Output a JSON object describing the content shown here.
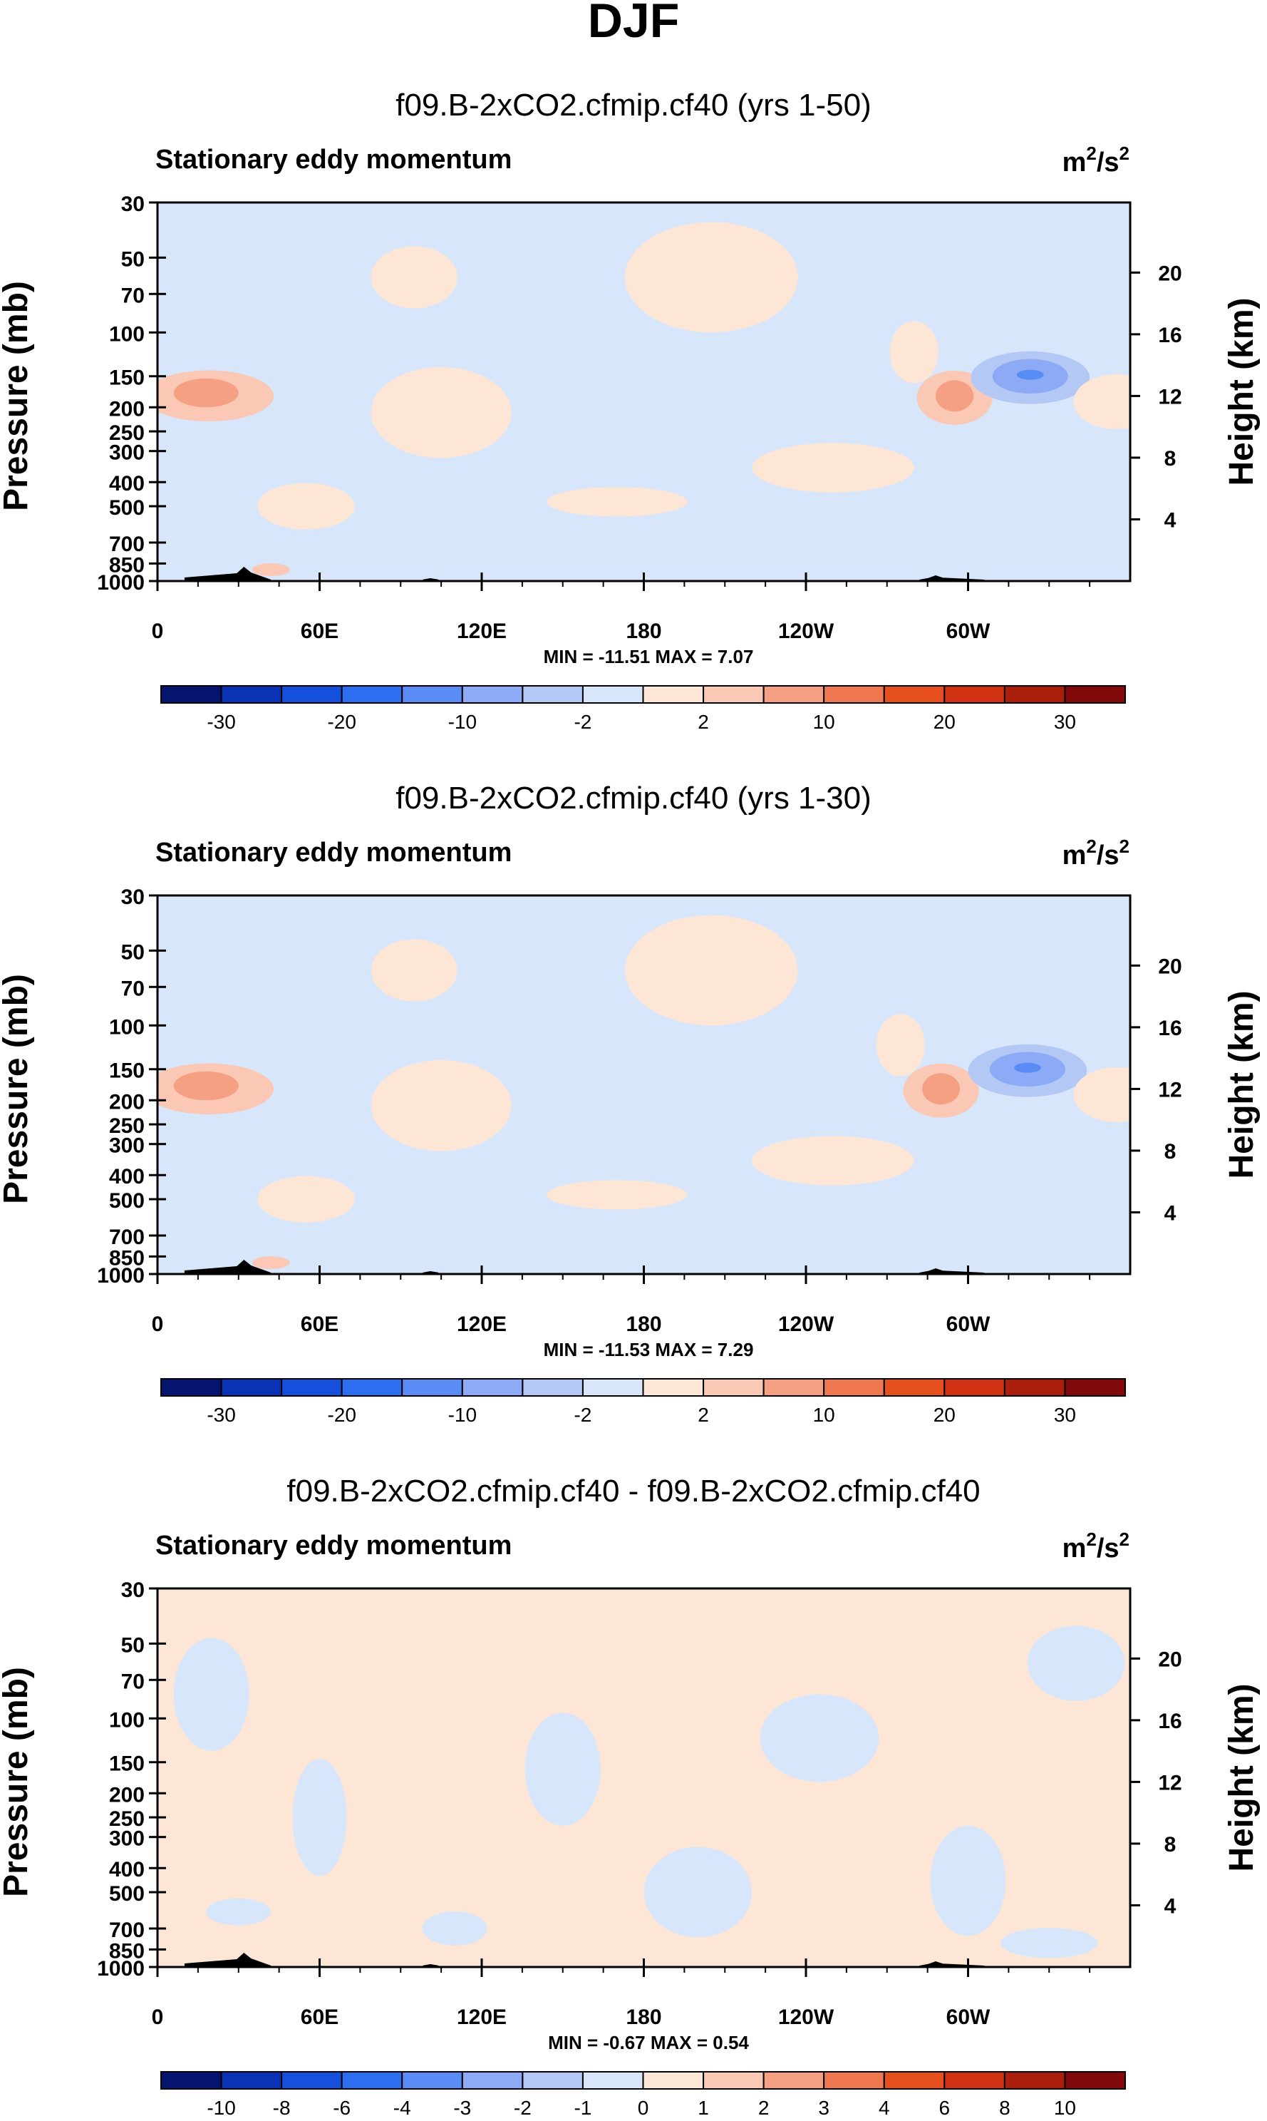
{
  "figure_title": "DJF",
  "chart_data": [
    {
      "type": "heatmap",
      "title": "f09.B-2xCO2.cfmip.cf40 (yrs 1-50)",
      "left_label": "Stationary eddy momentum",
      "units_base": "m",
      "units_sup1": "2",
      "units_mid": "/s",
      "units_sup2": "2",
      "ylabel": "Pressure (mb)",
      "ylabel_right": "Height (km)",
      "x_ticks": [
        "0",
        "60E",
        "120E",
        "180",
        "120W",
        "60W"
      ],
      "x_tick_lon": [
        0,
        60,
        120,
        180,
        240,
        300
      ],
      "x_range": [
        0,
        360
      ],
      "y_ticks": [
        "30",
        "50",
        "70",
        "100",
        "150",
        "200",
        "250",
        "300",
        "400",
        "500",
        "700",
        "850",
        "1000"
      ],
      "y_tick_p": [
        30,
        50,
        70,
        100,
        150,
        200,
        250,
        300,
        400,
        500,
        700,
        850,
        1000
      ],
      "y_range": [
        30,
        1000
      ],
      "height_ticks": [
        "20",
        "16",
        "12",
        "8",
        "4"
      ],
      "height_km": [
        20,
        16,
        12,
        8,
        4
      ],
      "stats": "MIN = -11.51  MAX =  7.07",
      "colorbar_levels": [
        "-30",
        "-20",
        "-10",
        "-2",
        "2",
        "10",
        "20",
        "30"
      ],
      "colorbar_label_slots": [
        1,
        3,
        5,
        7,
        9,
        11,
        13,
        15
      ],
      "colors": [
        "#05146e",
        "#0a32b4",
        "#1450dc",
        "#2d6ef0",
        "#5a8cf5",
        "#8caaf5",
        "#b4c8f5",
        "#d7e6fa",
        "#fde6d6",
        "#fac8b4",
        "#f5a082",
        "#f07850",
        "#e6501e",
        "#d23214",
        "#aa1e0a",
        "#820a0a"
      ],
      "background_level": 7,
      "features": [
        {
          "kind": "blob",
          "lon": 19,
          "p": 180,
          "rx": 24,
          "ry": 48,
          "level": 9
        },
        {
          "kind": "blob",
          "lon": 18,
          "p": 175,
          "rx": 12,
          "ry": 25,
          "level": 10
        },
        {
          "kind": "blob",
          "lon": 295,
          "p": 183,
          "rx": 14,
          "ry": 52,
          "level": 9
        },
        {
          "kind": "blob",
          "lon": 295,
          "p": 180,
          "rx": 7,
          "ry": 28,
          "level": 10
        },
        {
          "kind": "blob",
          "lon": 323,
          "p": 152,
          "rx": 22,
          "ry": 42,
          "level": 6
        },
        {
          "kind": "blob",
          "lon": 323,
          "p": 150,
          "rx": 14,
          "ry": 26,
          "level": 5
        },
        {
          "kind": "blob",
          "lon": 323,
          "p": 148,
          "rx": 5,
          "ry": 7,
          "level": 4
        },
        {
          "kind": "blob",
          "lon": 105,
          "p": 210,
          "rx": 26,
          "ry": 110,
          "level": 8
        },
        {
          "kind": "blob",
          "lon": 250,
          "p": 350,
          "rx": 30,
          "ry": 90,
          "level": 8
        },
        {
          "kind": "blob",
          "lon": 170,
          "p": 480,
          "rx": 26,
          "ry": 70,
          "level": 8
        },
        {
          "kind": "blob",
          "lon": 55,
          "p": 500,
          "rx": 18,
          "ry": 120,
          "level": 8
        },
        {
          "kind": "blob",
          "lon": 205,
          "p": 60,
          "rx": 32,
          "ry": 40,
          "level": 8
        },
        {
          "kind": "blob",
          "lon": 355,
          "p": 190,
          "rx": 16,
          "ry": 55,
          "level": 8
        },
        {
          "kind": "blob",
          "lon": 42,
          "p": 900,
          "rx": 7,
          "ry": 55,
          "level": 9
        },
        {
          "kind": "blob",
          "lon": 95,
          "p": 60,
          "rx": 16,
          "ry": 20,
          "level": 8
        },
        {
          "kind": "blob",
          "lon": 280,
          "p": 120,
          "rx": 9,
          "ry": 40,
          "level": 8
        }
      ],
      "topography": [
        {
          "lon0": 10,
          "lon1": 42,
          "peak_lon": 32,
          "peak_h": 20
        },
        {
          "lon0": 282,
          "lon1": 306,
          "peak_lon": 288,
          "peak_h": 8
        },
        {
          "lon0": 98,
          "lon1": 104,
          "peak_lon": 101,
          "peak_h": 4
        }
      ]
    },
    {
      "type": "heatmap",
      "title": "f09.B-2xCO2.cfmip.cf40 (yrs 1-30)",
      "left_label": "Stationary eddy momentum",
      "units_base": "m",
      "units_sup1": "2",
      "units_mid": "/s",
      "units_sup2": "2",
      "ylabel": "Pressure (mb)",
      "ylabel_right": "Height (km)",
      "x_ticks": [
        "0",
        "60E",
        "120E",
        "180",
        "120W",
        "60W"
      ],
      "x_tick_lon": [
        0,
        60,
        120,
        180,
        240,
        300
      ],
      "x_range": [
        0,
        360
      ],
      "y_ticks": [
        "30",
        "50",
        "70",
        "100",
        "150",
        "200",
        "250",
        "300",
        "400",
        "500",
        "700",
        "850",
        "1000"
      ],
      "y_tick_p": [
        30,
        50,
        70,
        100,
        150,
        200,
        250,
        300,
        400,
        500,
        700,
        850,
        1000
      ],
      "y_range": [
        30,
        1000
      ],
      "height_ticks": [
        "20",
        "16",
        "12",
        "8",
        "4"
      ],
      "height_km": [
        20,
        16,
        12,
        8,
        4
      ],
      "stats": "MIN = -11.53  MAX =  7.29",
      "colorbar_levels": [
        "-30",
        "-20",
        "-10",
        "-2",
        "2",
        "10",
        "20",
        "30"
      ],
      "colorbar_label_slots": [
        1,
        3,
        5,
        7,
        9,
        11,
        13,
        15
      ],
      "colors": [
        "#05146e",
        "#0a32b4",
        "#1450dc",
        "#2d6ef0",
        "#5a8cf5",
        "#8caaf5",
        "#b4c8f5",
        "#d7e6fa",
        "#fde6d6",
        "#fac8b4",
        "#f5a082",
        "#f07850",
        "#e6501e",
        "#d23214",
        "#aa1e0a",
        "#820a0a"
      ],
      "background_level": 7,
      "features": [
        {
          "kind": "blob",
          "lon": 19,
          "p": 180,
          "rx": 24,
          "ry": 48,
          "level": 9
        },
        {
          "kind": "blob",
          "lon": 18,
          "p": 175,
          "rx": 12,
          "ry": 25,
          "level": 10
        },
        {
          "kind": "blob",
          "lon": 290,
          "p": 183,
          "rx": 14,
          "ry": 52,
          "level": 9
        },
        {
          "kind": "blob",
          "lon": 290,
          "p": 180,
          "rx": 7,
          "ry": 28,
          "level": 10
        },
        {
          "kind": "blob",
          "lon": 322,
          "p": 152,
          "rx": 22,
          "ry": 42,
          "level": 6
        },
        {
          "kind": "blob",
          "lon": 322,
          "p": 150,
          "rx": 14,
          "ry": 26,
          "level": 5
        },
        {
          "kind": "blob",
          "lon": 322,
          "p": 148,
          "rx": 5,
          "ry": 7,
          "level": 4
        },
        {
          "kind": "blob",
          "lon": 105,
          "p": 210,
          "rx": 26,
          "ry": 110,
          "level": 8
        },
        {
          "kind": "blob",
          "lon": 250,
          "p": 350,
          "rx": 30,
          "ry": 90,
          "level": 8
        },
        {
          "kind": "blob",
          "lon": 170,
          "p": 480,
          "rx": 26,
          "ry": 70,
          "level": 8
        },
        {
          "kind": "blob",
          "lon": 55,
          "p": 500,
          "rx": 18,
          "ry": 120,
          "level": 8
        },
        {
          "kind": "blob",
          "lon": 205,
          "p": 60,
          "rx": 32,
          "ry": 40,
          "level": 8
        },
        {
          "kind": "blob",
          "lon": 355,
          "p": 190,
          "rx": 16,
          "ry": 55,
          "level": 8
        },
        {
          "kind": "blob",
          "lon": 42,
          "p": 900,
          "rx": 7,
          "ry": 55,
          "level": 9
        },
        {
          "kind": "blob",
          "lon": 95,
          "p": 60,
          "rx": 16,
          "ry": 20,
          "level": 8
        },
        {
          "kind": "blob",
          "lon": 275,
          "p": 120,
          "rx": 9,
          "ry": 40,
          "level": 8
        }
      ],
      "topography": [
        {
          "lon0": 10,
          "lon1": 42,
          "peak_lon": 32,
          "peak_h": 20
        },
        {
          "lon0": 282,
          "lon1": 306,
          "peak_lon": 288,
          "peak_h": 8
        },
        {
          "lon0": 98,
          "lon1": 104,
          "peak_lon": 101,
          "peak_h": 4
        }
      ]
    },
    {
      "type": "heatmap",
      "title": "f09.B-2xCO2.cfmip.cf40 - f09.B-2xCO2.cfmip.cf40",
      "left_label": "Stationary eddy momentum",
      "units_base": "m",
      "units_sup1": "2",
      "units_mid": "/s",
      "units_sup2": "2",
      "ylabel": "Pressure (mb)",
      "ylabel_right": "Height (km)",
      "x_ticks": [
        "0",
        "60E",
        "120E",
        "180",
        "120W",
        "60W"
      ],
      "x_tick_lon": [
        0,
        60,
        120,
        180,
        240,
        300
      ],
      "x_range": [
        0,
        360
      ],
      "y_ticks": [
        "30",
        "50",
        "70",
        "100",
        "150",
        "200",
        "250",
        "300",
        "400",
        "500",
        "700",
        "850",
        "1000"
      ],
      "y_tick_p": [
        30,
        50,
        70,
        100,
        150,
        200,
        250,
        300,
        400,
        500,
        700,
        850,
        1000
      ],
      "y_range": [
        30,
        1000
      ],
      "height_ticks": [
        "20",
        "16",
        "12",
        "8",
        "4"
      ],
      "height_km": [
        20,
        16,
        12,
        8,
        4
      ],
      "stats": "MIN =  -0.67  MAX =   0.54",
      "colorbar_levels": [
        "-10",
        "-8",
        "-6",
        "-4",
        "-3",
        "-2",
        "-1",
        "0",
        "1",
        "2",
        "3",
        "4",
        "6",
        "8",
        "10"
      ],
      "colorbar_label_slots": [
        1,
        2,
        3,
        4,
        5,
        6,
        7,
        8,
        9,
        10,
        11,
        12,
        13,
        14,
        15
      ],
      "colors": [
        "#05146e",
        "#0a32b4",
        "#1450dc",
        "#2d6ef0",
        "#5a8cf5",
        "#8caaf5",
        "#b4c8f5",
        "#d7e6fa",
        "#fde6d6",
        "#fac8b4",
        "#f5a082",
        "#f07850",
        "#e6501e",
        "#d23214",
        "#aa1e0a",
        "#820a0a"
      ],
      "background_level": 8,
      "features": [
        {
          "kind": "blob",
          "lon": 20,
          "p": 80,
          "rx": 14,
          "ry": 55,
          "level": 7
        },
        {
          "kind": "blob",
          "lon": 60,
          "p": 250,
          "rx": 10,
          "ry": 180,
          "level": 7
        },
        {
          "kind": "blob",
          "lon": 150,
          "p": 160,
          "rx": 14,
          "ry": 110,
          "level": 7
        },
        {
          "kind": "blob",
          "lon": 200,
          "p": 500,
          "rx": 20,
          "ry": 260,
          "level": 7
        },
        {
          "kind": "blob",
          "lon": 245,
          "p": 120,
          "rx": 22,
          "ry": 60,
          "level": 7
        },
        {
          "kind": "blob",
          "lon": 300,
          "p": 450,
          "rx": 14,
          "ry": 300,
          "level": 7
        },
        {
          "kind": "blob",
          "lon": 340,
          "p": 60,
          "rx": 18,
          "ry": 25,
          "level": 7
        },
        {
          "kind": "blob",
          "lon": 110,
          "p": 700,
          "rx": 12,
          "ry": 120,
          "level": 7
        },
        {
          "kind": "blob",
          "lon": 330,
          "p": 800,
          "rx": 18,
          "ry": 120,
          "level": 7
        },
        {
          "kind": "blob",
          "lon": 30,
          "p": 600,
          "rx": 12,
          "ry": 80,
          "level": 7
        }
      ],
      "topography": [
        {
          "lon0": 10,
          "lon1": 42,
          "peak_lon": 32,
          "peak_h": 20
        },
        {
          "lon0": 282,
          "lon1": 306,
          "peak_lon": 288,
          "peak_h": 8
        },
        {
          "lon0": 98,
          "lon1": 104,
          "peak_lon": 101,
          "peak_h": 4
        }
      ]
    }
  ]
}
